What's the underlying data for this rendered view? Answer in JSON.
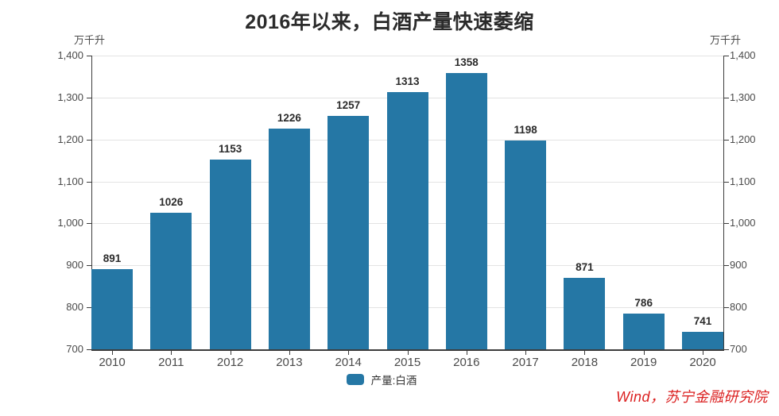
{
  "chart_data": {
    "type": "bar",
    "title": "2016年以来，白酒产量快速萎缩",
    "y_unit": "万千升",
    "categories": [
      "2010",
      "2011",
      "2012",
      "2013",
      "2014",
      "2015",
      "2016",
      "2017",
      "2018",
      "2019",
      "2020"
    ],
    "series": [
      {
        "name": "产量:白酒",
        "values": [
          891,
          1026,
          1153,
          1226,
          1257,
          1313,
          1358,
          1198,
          871,
          786,
          741
        ]
      }
    ],
    "ylim": [
      700,
      1400
    ],
    "ytick_step": 100,
    "grid": true,
    "value_labels": true,
    "legend_position": "bottom-center",
    "bar_color": "#2577a5",
    "grid_color": "#e3e3e3",
    "axis_color": "#3c3c3c"
  },
  "legend": {
    "items": [
      {
        "label": "产量:白酒",
        "color": "#2577a5"
      }
    ]
  },
  "footer": {
    "source": "Wind，苏宁金融研究院",
    "source_color": "#db2020"
  }
}
